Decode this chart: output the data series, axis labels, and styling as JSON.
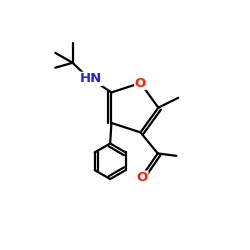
{
  "background": "#ffffff",
  "bond_color": "#000000",
  "N_color": "#2222ff",
  "O_color": "#ff2200",
  "bond_lw": 1.6,
  "label_fs": 9.5,
  "fig_w": 2.5,
  "fig_h": 2.5,
  "dpi": 100,
  "xlim": [
    0,
    10
  ],
  "ylim": [
    0,
    10
  ]
}
